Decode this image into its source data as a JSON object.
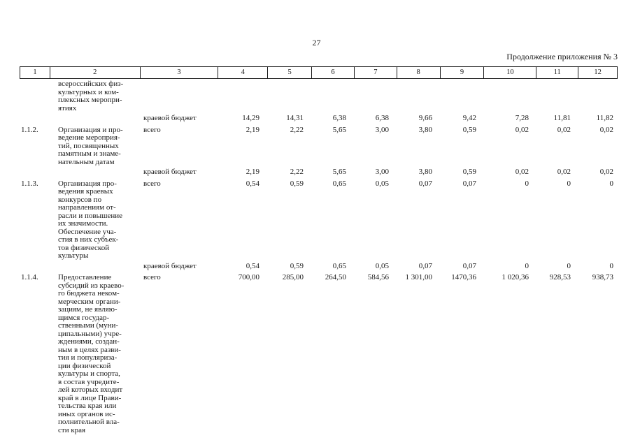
{
  "page": {
    "number": "27",
    "continuation": "Продолжение приложения № 3"
  },
  "table": {
    "column_numbers": [
      "1",
      "2",
      "3",
      "4",
      "5",
      "6",
      "7",
      "8",
      "9",
      "10",
      "11",
      "12"
    ],
    "items": [
      {
        "num": "",
        "name_lines": [
          "всероссийских физ-",
          "культурных и ком-",
          "плексных меропри-",
          "ятиях"
        ],
        "top_row": null,
        "after_rows": [
          {
            "label": "краевой бюджет",
            "values": [
              "14,29",
              "14,31",
              "6,38",
              "6,38",
              "9,66",
              "9,42",
              "7,28",
              "11,81",
              "11,82"
            ]
          }
        ]
      },
      {
        "num": "1.1.2.",
        "name_lines": [
          "Организация и про-",
          "ведение мероприя-",
          "тий, посвященных",
          "памятным и знаме-",
          "нательным датам"
        ],
        "top_row": {
          "label": "всего",
          "values": [
            "2,19",
            "2,22",
            "5,65",
            "3,00",
            "3,80",
            "0,59",
            "0,02",
            "0,02",
            "0,02"
          ]
        },
        "after_rows": [
          {
            "label": "краевой бюджет",
            "values": [
              "2,19",
              "2,22",
              "5,65",
              "3,00",
              "3,80",
              "0,59",
              "0,02",
              "0,02",
              "0,02"
            ]
          }
        ]
      },
      {
        "num": "1.1.3.",
        "name_lines": [
          "Организация про-",
          "ведения краевых",
          "конкурсов по",
          "направлениям от-",
          "расли и повышение",
          "их значимости.",
          "Обеспечение уча-",
          "стия в них субъек-",
          "тов физической",
          "культуры"
        ],
        "top_row": {
          "label": "всего",
          "values": [
            "0,54",
            "0,59",
            "0,65",
            "0,05",
            "0,07",
            "0,07",
            "0",
            "0",
            "0"
          ]
        },
        "after_rows": [
          {
            "label": "краевой бюджет",
            "values": [
              "0,54",
              "0,59",
              "0,65",
              "0,05",
              "0,07",
              "0,07",
              "0",
              "0",
              "0"
            ]
          }
        ]
      },
      {
        "num": "1.1.4.",
        "name_lines": [
          "Предоставление",
          "субсидий из краево-",
          "го бюджета неком-",
          "мерческим органи-",
          "зациям, не являю-",
          "щимся государ-",
          "ственными (муни-",
          "ципальными) учре-",
          "ждениями, создан-",
          "ным в целях разви-",
          "тия и популяриза-",
          "ции физической",
          "культуры и спорта,",
          "в состав учредите-",
          "лей которых входит",
          "край в лице Прави-",
          "тельства края или",
          "иных органов ис-",
          "полнительной вла-",
          "сти края"
        ],
        "top_row": {
          "label": "всего",
          "values": [
            "700,00",
            "285,00",
            "264,50",
            "584,56",
            "1 301,00",
            "1470,36",
            "1 020,36",
            "928,53",
            "938,73"
          ]
        },
        "after_rows": []
      }
    ]
  }
}
